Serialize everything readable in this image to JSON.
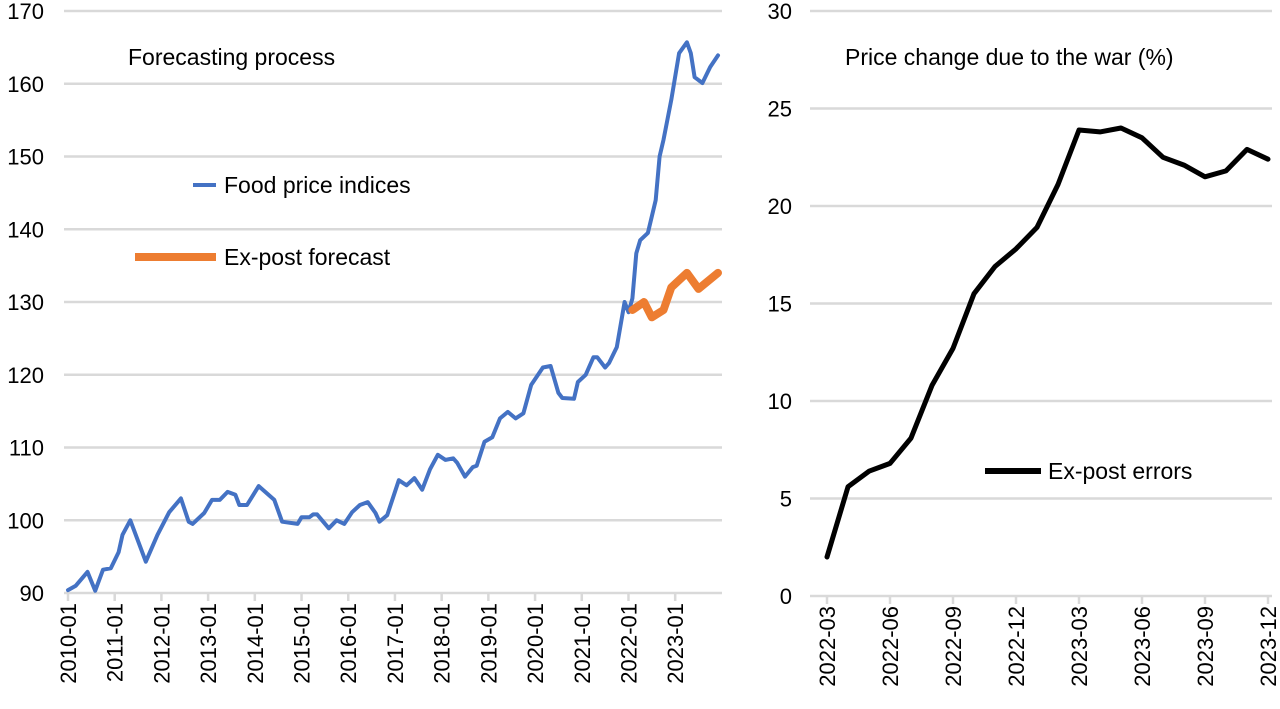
{
  "chart_data": [
    {
      "type": "line",
      "title": "Forecasting process",
      "ylim": [
        90,
        170
      ],
      "yticks": [
        90,
        100,
        110,
        120,
        130,
        140,
        150,
        160,
        170
      ],
      "xlim": [
        "2010-01",
        "2023-12"
      ],
      "xticks": [
        "2010-01",
        "2011-01",
        "2012-01",
        "2013-01",
        "2014-01",
        "2015-01",
        "2016-01",
        "2017-01",
        "2018-01",
        "2019-01",
        "2020-01",
        "2021-01",
        "2022-01",
        "2023-01"
      ],
      "grid": true,
      "legend": "left",
      "series": [
        {
          "name": "Food price indices",
          "color": "#4472c4",
          "x": [
            "2010-01",
            "2010-03",
            "2010-06",
            "2010-08",
            "2010-10",
            "2010-12",
            "2011-02",
            "2011-03",
            "2011-05",
            "2011-09",
            "2011-12",
            "2012-03",
            "2012-06",
            "2012-08",
            "2012-09",
            "2012-12",
            "2013-02",
            "2013-04",
            "2013-06",
            "2013-08",
            "2013-09",
            "2013-11",
            "2014-02",
            "2014-06",
            "2014-08",
            "2014-12",
            "2015-01",
            "2015-03",
            "2015-04",
            "2015-05",
            "2015-08",
            "2015-10",
            "2015-12",
            "2016-02",
            "2016-04",
            "2016-06",
            "2016-08",
            "2016-09",
            "2016-11",
            "2017-02",
            "2017-04",
            "2017-06",
            "2017-08",
            "2017-10",
            "2017-12",
            "2018-02",
            "2018-04",
            "2018-05",
            "2018-07",
            "2018-09",
            "2018-10",
            "2018-12",
            "2019-02",
            "2019-04",
            "2019-06",
            "2019-08",
            "2019-10",
            "2019-12",
            "2020-03",
            "2020-05",
            "2020-07",
            "2020-08",
            "2020-11",
            "2020-12",
            "2021-02",
            "2021-04",
            "2021-05",
            "2021-07",
            "2021-08",
            "2021-10",
            "2021-12",
            "2022-01",
            "2022-02",
            "2022-03",
            "2022-04",
            "2022-06",
            "2022-08",
            "2022-09",
            "2022-10",
            "2022-12",
            "2023-02",
            "2023-04",
            "2023-05",
            "2023-06",
            "2023-08",
            "2023-10",
            "2023-12"
          ],
          "values": [
            90.4,
            91,
            92.9,
            90.3,
            93.2,
            93.4,
            95.6,
            98,
            100,
            94.3,
            98,
            101.1,
            103,
            99.8,
            99.5,
            101,
            102.8,
            102.8,
            103.9,
            103.5,
            102.1,
            102.1,
            104.7,
            102.8,
            99.8,
            99.5,
            100.4,
            100.4,
            100.8,
            100.8,
            98.9,
            100,
            99.5,
            101.1,
            102.1,
            102.5,
            101,
            99.8,
            100.7,
            105.5,
            104.8,
            105.8,
            104.2,
            107,
            109,
            108.3,
            108.5,
            107.9,
            106,
            107.3,
            107.5,
            110.8,
            111.4,
            114,
            114.9,
            114,
            114.7,
            118.6,
            121,
            121.2,
            117.5,
            116.8,
            116.7,
            119,
            120,
            122.4,
            122.4,
            121,
            121.6,
            123.8,
            130,
            128.6,
            130.5,
            136.7,
            138.5,
            139.5,
            144,
            150,
            152.3,
            157.8,
            164.2,
            165.7,
            164.2,
            160.9,
            160.1,
            162.3,
            163.9
          ]
        },
        {
          "name": "Ex-post forecast",
          "color": "#ed7d31",
          "x": [
            "2022-02",
            "2022-05",
            "2022-07",
            "2022-10",
            "2022-12",
            "2023-04",
            "2023-07",
            "2023-12"
          ],
          "values": [
            128.9,
            130,
            127.9,
            128.9,
            132,
            134,
            131.8,
            134
          ]
        }
      ]
    },
    {
      "type": "line",
      "title": "Price change due to the war (%)",
      "ylim": [
        0,
        30
      ],
      "yticks": [
        0,
        5,
        10,
        15,
        20,
        25,
        30
      ],
      "xlim": [
        "2022-03",
        "2023-12"
      ],
      "xticks": [
        "2022-03",
        "2022-06",
        "2022-09",
        "2022-12",
        "2023-03",
        "2023-06",
        "2023-09",
        "2023-12"
      ],
      "grid": true,
      "legend": "bottom-right",
      "series": [
        {
          "name": "Ex-post errors",
          "color": "#000000",
          "x": [
            "2022-03",
            "2022-04",
            "2022-05",
            "2022-06",
            "2022-07",
            "2022-08",
            "2022-09",
            "2022-10",
            "2022-11",
            "2022-12",
            "2023-01",
            "2023-02",
            "2023-03",
            "2023-04",
            "2023-05",
            "2023-06",
            "2023-07",
            "2023-08",
            "2023-09",
            "2023-10",
            "2023-11",
            "2023-12"
          ],
          "values": [
            2.0,
            5.6,
            6.4,
            6.8,
            8.1,
            10.8,
            12.7,
            15.5,
            16.9,
            17.8,
            18.9,
            21.1,
            23.9,
            23.8,
            24.0,
            23.5,
            22.5,
            22.1,
            21.5,
            21.8,
            22.9,
            22.4
          ]
        }
      ]
    }
  ]
}
